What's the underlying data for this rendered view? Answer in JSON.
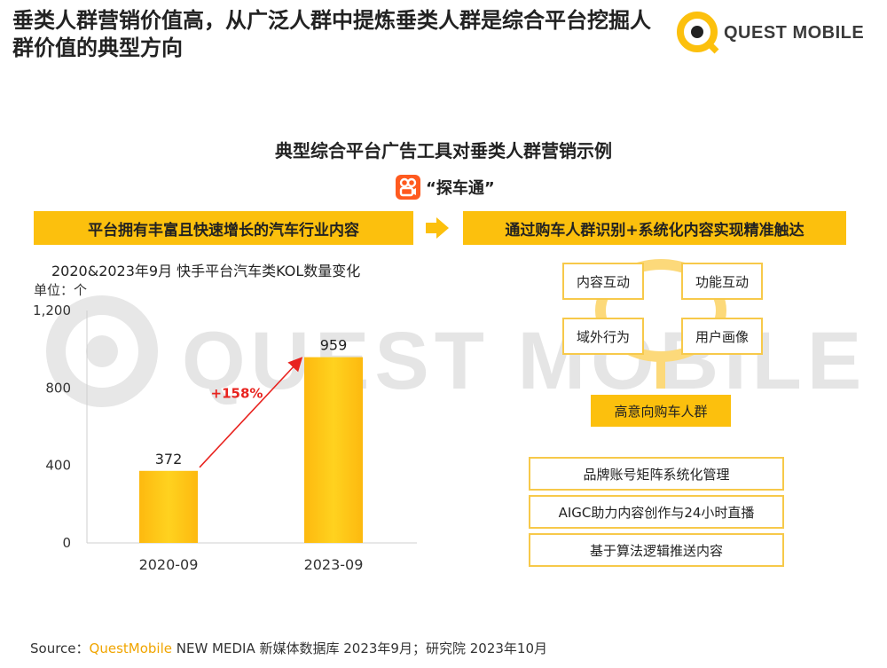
{
  "header": {
    "title": "垂类人群营销价值高，从广泛人群中提炼垂类人群是综合平台挖掘人群价值的典型方向",
    "brand": "QUEST MOBILE"
  },
  "watermark": "QUEST MOBILE",
  "section_title": "典型综合平台广告工具对垂类人群营销示例",
  "app_name": "“探车通”",
  "left_band": "平台拥有丰富且快速增长的汽车行业内容",
  "right_band": "通过购车人群识别+系统化内容实现精准触达",
  "chart_data": {
    "type": "bar",
    "title": "2020&2023年9月 快手平台汽车类KOL数量变化",
    "unit_label": "单位：个",
    "categories": [
      "2020-09",
      "2023-09"
    ],
    "values": [
      372,
      959
    ],
    "value_labels": [
      "372",
      "959"
    ],
    "yticks": [
      "1,200",
      "800",
      "400",
      "0"
    ],
    "ytick_values": [
      1200,
      800,
      400,
      0
    ],
    "ylim": [
      0,
      1200
    ],
    "growth_annotation": "+158%",
    "colors": {
      "bar": "#fcc00d",
      "arrow": "#e8231f"
    }
  },
  "flow": {
    "cycle": [
      "内容互动",
      "功能互动",
      "域外行为",
      "用户画像"
    ],
    "target": "高意向购车人群",
    "methods": [
      "品牌账号矩阵系统化管理",
      "AIGC助力内容创作与24小时直播",
      "基于算法逻辑推送内容"
    ]
  },
  "footer": {
    "prefix": "Source：",
    "brand": "QuestMobile",
    "rest": " NEW MEDIA 新媒体数据库 2023年9月；研究院 2023年10月"
  },
  "colors": {
    "accent": "#fcc00d",
    "border": "#f7c94a",
    "red": "#e8231f"
  }
}
